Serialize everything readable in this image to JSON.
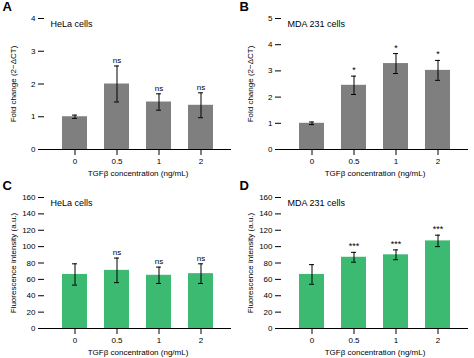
{
  "chart_data": [
    {
      "type": "bar",
      "title": "HeLa cells",
      "panel_label": "A",
      "categories": [
        "0",
        "0.5",
        "1",
        "2"
      ],
      "values": [
        1.0,
        2.0,
        1.45,
        1.35
      ],
      "errors": [
        0.05,
        0.55,
        0.25,
        0.38
      ],
      "annotations": [
        null,
        "ns",
        "ns",
        "ns"
      ],
      "xlabel": "TGFβ concentration (ng/mL)",
      "ylabel": "Fold change (2−ΔCT)",
      "ylim": [
        0,
        4
      ],
      "yticks": [
        0,
        1,
        2,
        3,
        4
      ],
      "color": "#7f7f7f"
    },
    {
      "type": "bar",
      "title": "MDA 231 cells",
      "panel_label": "B",
      "categories": [
        "0",
        "0.5",
        "1",
        "2"
      ],
      "values": [
        1.0,
        2.45,
        3.28,
        3.02
      ],
      "errors": [
        0.05,
        0.35,
        0.38,
        0.38
      ],
      "annotations": [
        null,
        "*",
        "*",
        "*"
      ],
      "xlabel": "TGFβ concentration (ng/mL)",
      "ylabel": "Fold change (2−ΔCT)",
      "ylim": [
        0,
        5
      ],
      "yticks": [
        0,
        1,
        2,
        3,
        4,
        5
      ],
      "color": "#7f7f7f"
    },
    {
      "type": "bar",
      "title": "HeLa cells",
      "panel_label": "C",
      "categories": [
        "0",
        "0.5",
        "1",
        "2"
      ],
      "values": [
        66,
        71,
        65,
        67
      ],
      "errors": [
        13,
        15,
        10,
        12
      ],
      "annotations": [
        null,
        "ns",
        "ns",
        "ns"
      ],
      "xlabel": "TGFβ concentration (ng/mL)",
      "ylabel": "Fluorescence intensity (a.u.)",
      "ylim": [
        0,
        160
      ],
      "yticks": [
        0,
        20,
        40,
        60,
        80,
        100,
        120,
        140,
        160
      ],
      "color": "#3dba72"
    },
    {
      "type": "bar",
      "title": "MDA 231 cells",
      "panel_label": "D",
      "categories": [
        "0",
        "0.5",
        "1",
        "2"
      ],
      "values": [
        66,
        87,
        90,
        107
      ],
      "errors": [
        12,
        6,
        6,
        7
      ],
      "annotations": [
        null,
        "***",
        "***",
        "***"
      ],
      "xlabel": "TGFβ concentration (ng/mL)",
      "ylabel": "Fluorescence intensity (a.u.)",
      "ylim": [
        0,
        160
      ],
      "yticks": [
        0,
        20,
        40,
        60,
        80,
        100,
        120,
        140,
        160
      ],
      "color": "#3dba72"
    }
  ]
}
